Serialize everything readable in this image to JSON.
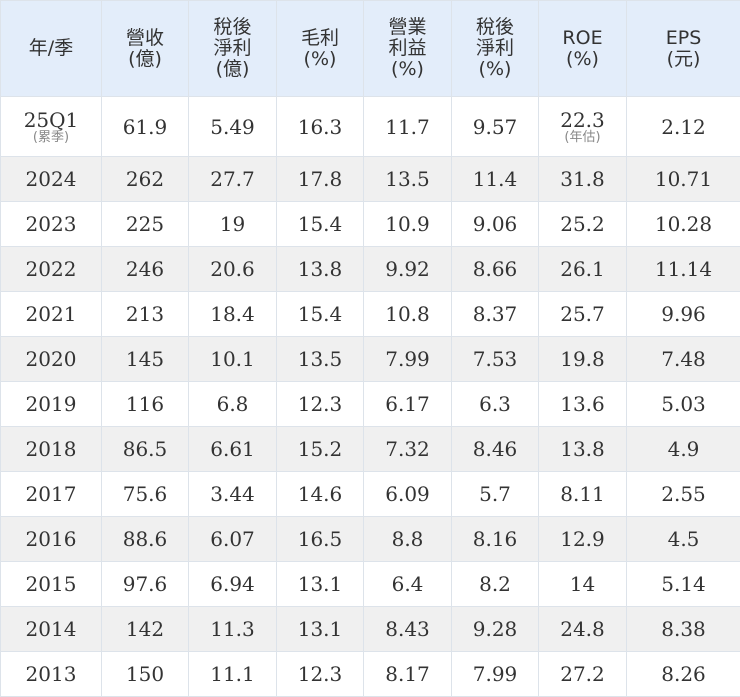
{
  "headers": [
    "年/季",
    "營收\n(億)",
    "稅後\n淨利\n(億)",
    "毛利\n(%)",
    "營業\n利益\n(%)",
    "稅後\n淨利\n(%)",
    "ROE\n(%)",
    "EPS\n(元)"
  ],
  "first_row": {
    "period": "25Q1",
    "period_note": "(累季)",
    "revenue": "61.9",
    "net_income": "5.49",
    "gross_margin": "16.3",
    "operating_margin": "11.7",
    "net_margin": "9.57",
    "roe": "22.3",
    "roe_note": "(年估)",
    "eps": "2.12"
  },
  "rows": [
    [
      "2024",
      "262",
      "27.7",
      "17.8",
      "13.5",
      "11.4",
      "31.8",
      "10.71"
    ],
    [
      "2023",
      "225",
      "19",
      "15.4",
      "10.9",
      "9.06",
      "25.2",
      "10.28"
    ],
    [
      "2022",
      "246",
      "20.6",
      "13.8",
      "9.92",
      "8.66",
      "26.1",
      "11.14"
    ],
    [
      "2021",
      "213",
      "18.4",
      "15.4",
      "10.8",
      "8.37",
      "25.7",
      "9.96"
    ],
    [
      "2020",
      "145",
      "10.1",
      "13.5",
      "7.99",
      "7.53",
      "19.8",
      "7.48"
    ],
    [
      "2019",
      "116",
      "6.8",
      "12.3",
      "6.17",
      "6.3",
      "13.6",
      "5.03"
    ],
    [
      "2018",
      "86.5",
      "6.61",
      "15.2",
      "7.32",
      "8.46",
      "13.8",
      "4.9"
    ],
    [
      "2017",
      "75.6",
      "3.44",
      "14.6",
      "6.09",
      "5.7",
      "8.11",
      "2.55"
    ],
    [
      "2016",
      "88.6",
      "6.07",
      "16.5",
      "8.8",
      "8.16",
      "12.9",
      "4.5"
    ],
    [
      "2015",
      "97.6",
      "6.94",
      "13.1",
      "6.4",
      "8.2",
      "14",
      "5.14"
    ],
    [
      "2014",
      "142",
      "11.3",
      "13.1",
      "8.43",
      "9.28",
      "24.8",
      "8.38"
    ],
    [
      "2013",
      "150",
      "11.1",
      "12.3",
      "8.17",
      "7.99",
      "27.2",
      "8.26"
    ]
  ],
  "colors": {
    "header_bg": "#e3edfa",
    "stripe_bg": "#f0f0f0",
    "text": "#333333",
    "note_text": "#888888",
    "border": "#dde3ea"
  }
}
